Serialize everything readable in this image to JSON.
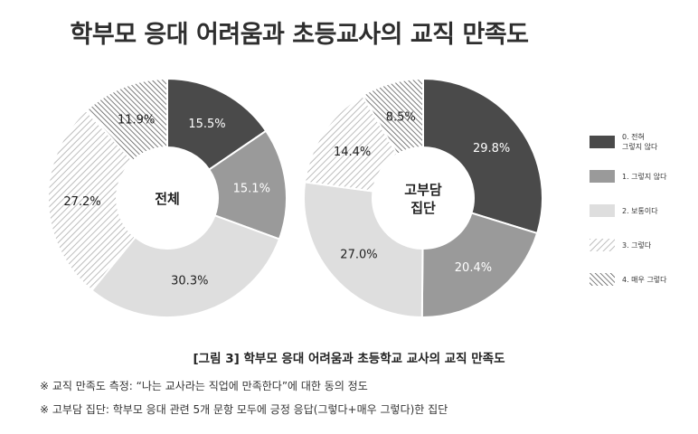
{
  "title": "학부모 응대 어려움과 초등교사의 교직 만족도",
  "caption": "[그림 3] 학부모 응대 어려움과 초등학교 교사의 교직 만족도",
  "notes": [
    "※ 교직 만족도 측정: “나는 교사라는 직업에 만족한다”에 대한 동의 정도",
    "※ 고부담 집단: 학부모 응대 관련 5개 문항 모두에 긍정 응답(그렇다+매우 그렇다)한 집단"
  ],
  "legend": [
    {
      "label": "0. 전혀\n그렇지 않다",
      "style": "dark"
    },
    {
      "label": "1. 그렇지 않다",
      "style": "mid"
    },
    {
      "label": "2. 보통이다",
      "style": "light"
    },
    {
      "label": "3. 그렇다",
      "style": "hatch-light"
    },
    {
      "label": "4. 매우 그렇다",
      "style": "hatch-dark"
    }
  ],
  "colors": {
    "dark": "#4a4a4a",
    "mid": "#9a9a9a",
    "light": "#dedede"
  },
  "chart_data": [
    {
      "type": "pie",
      "variant": "donut",
      "center_label": "전체",
      "categories": [
        "0. 전혀 그렇지 않다",
        "1. 그렇지 않다",
        "2. 보통이다",
        "3. 그렇다",
        "4. 매우 그렇다"
      ],
      "values": [
        15.5,
        15.1,
        30.3,
        27.2,
        11.9
      ],
      "labels": [
        "15.5%",
        "15.1%",
        "30.3%",
        "27.2%",
        "11.9%"
      ]
    },
    {
      "type": "pie",
      "variant": "donut",
      "center_label": "고부담\n집단",
      "categories": [
        "0. 전혀 그렇지 않다",
        "1. 그렇지 않다",
        "2. 보통이다",
        "3. 그렇다",
        "4. 매우 그렇다"
      ],
      "values": [
        29.8,
        20.4,
        27.0,
        14.4,
        8.5
      ],
      "labels": [
        "29.8%",
        "20.4%",
        "27.0%",
        "14.4%",
        "8.5%"
      ]
    }
  ]
}
